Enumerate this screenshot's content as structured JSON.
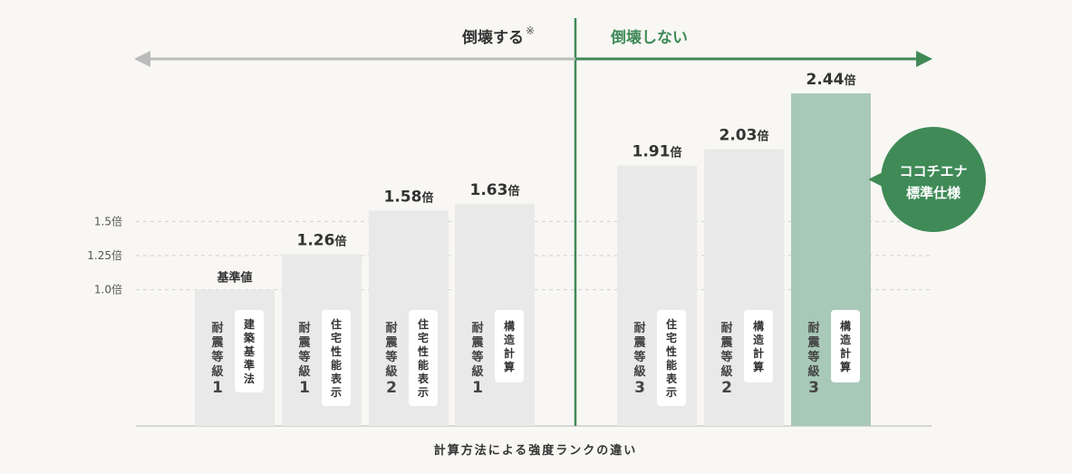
{
  "chart_data": {
    "type": "bar",
    "unit": "倍",
    "xlabel": "計算方法による強度ランクの違い",
    "yticks": [
      {
        "value": 1.0,
        "label": "1.0倍"
      },
      {
        "value": 1.25,
        "label": "1.25倍"
      },
      {
        "value": 1.5,
        "label": "1.5倍"
      }
    ],
    "ylim": [
      0.0,
      2.44
    ],
    "grid": true,
    "bars": [
      {
        "grade": "耐震等級",
        "grade_number": "1",
        "method": "建築基準法",
        "value": 1.0,
        "value_label": "基準値",
        "zone": "left",
        "highlight": false
      },
      {
        "grade": "耐震等級",
        "grade_number": "1",
        "method": "住宅性能表示",
        "value": 1.26,
        "value_label": "1.26倍",
        "zone": "left",
        "highlight": false
      },
      {
        "grade": "耐震等級",
        "grade_number": "2",
        "method": "住宅性能表示",
        "value": 1.58,
        "value_label": "1.58倍",
        "zone": "left",
        "highlight": false
      },
      {
        "grade": "耐震等級",
        "grade_number": "1",
        "method": "構造計算",
        "value": 1.63,
        "value_label": "1.63倍",
        "zone": "left",
        "highlight": false
      },
      {
        "grade": "耐震等級",
        "grade_number": "3",
        "method": "住宅性能表示",
        "value": 1.91,
        "value_label": "1.91倍",
        "zone": "right",
        "highlight": false
      },
      {
        "grade": "耐震等級",
        "grade_number": "2",
        "method": "構造計算",
        "value": 2.03,
        "value_label": "2.03倍",
        "zone": "right",
        "highlight": false
      },
      {
        "grade": "耐震等級",
        "grade_number": "3",
        "method": "構造計算",
        "value": 2.44,
        "value_label": "2.44倍",
        "zone": "right",
        "highlight": true
      }
    ],
    "zones": {
      "left_label": "倒壊する",
      "left_note_mark": "※",
      "right_label": "倒壊しない"
    },
    "badge": {
      "line1": "ココチエナ",
      "line2": "標準仕様"
    }
  },
  "colors": {
    "background": "#f8f7f4",
    "bar": "#e9e9e9",
    "bar_highlight": "#a8c9b8",
    "accent_green": "#3f8a57",
    "left_arrow": "#bbbbbb",
    "grid": "#cfcfcf"
  }
}
